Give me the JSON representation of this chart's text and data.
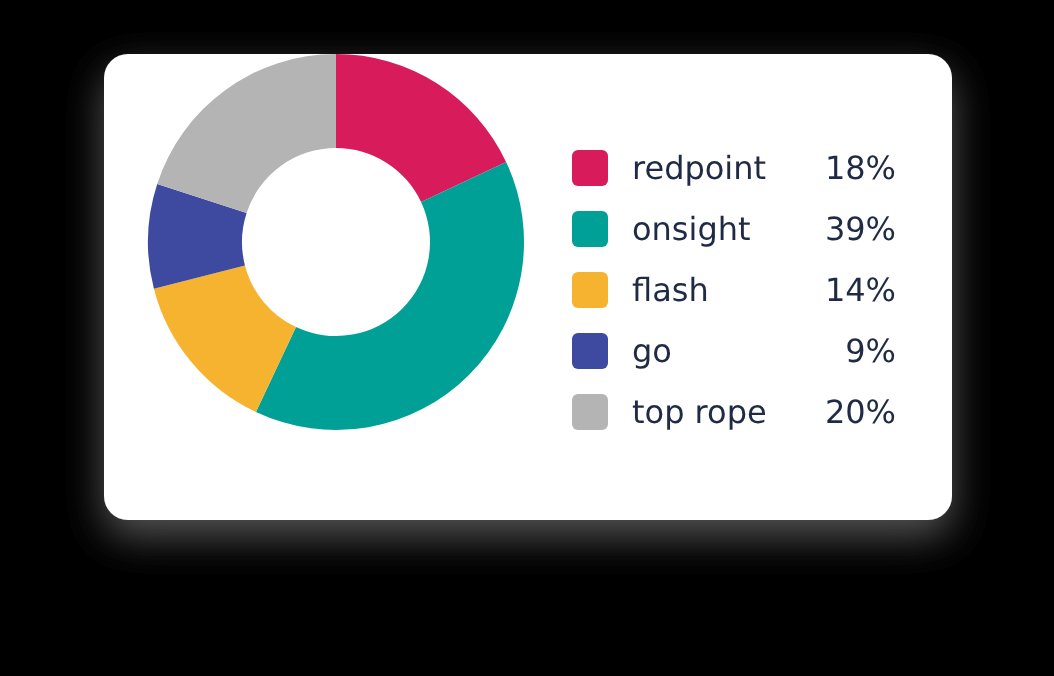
{
  "chart_data": {
    "type": "donut",
    "categories": [
      "redpoint",
      "onsight",
      "flash",
      "go",
      "top rope"
    ],
    "values": [
      18,
      39,
      14,
      9,
      20
    ],
    "colors": [
      "#d81b5a",
      "#00a096",
      "#f6b330",
      "#3d4aa0",
      "#b4b4b4"
    ],
    "value_labels": [
      "18%",
      "39%",
      "14%",
      "9%",
      "20%"
    ],
    "legend": "right"
  }
}
